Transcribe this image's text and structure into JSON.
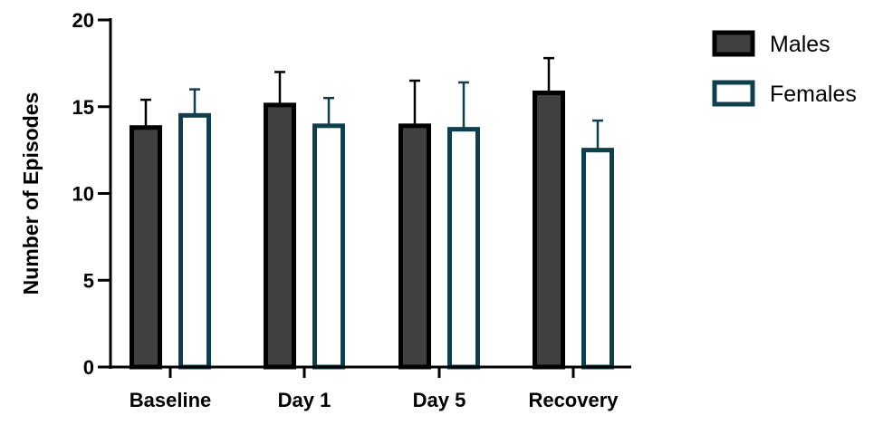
{
  "chart_data": {
    "type": "bar",
    "categories": [
      "Baseline",
      "Day 1",
      "Day 5",
      "Recovery"
    ],
    "series": [
      {
        "name": "Males",
        "values": [
          13.8,
          15.1,
          13.9,
          15.8
        ],
        "errors": [
          1.6,
          1.9,
          2.6,
          2.0
        ],
        "fill": "#404040",
        "stroke": "#000000"
      },
      {
        "name": "Females",
        "values": [
          14.5,
          13.9,
          13.7,
          12.5
        ],
        "errors": [
          1.5,
          1.6,
          2.7,
          1.7
        ],
        "fill": "#ffffff",
        "stroke": "#0f3f4d"
      }
    ],
    "ylabel": "Number of Episodes",
    "xlabel": "",
    "ylim": [
      0,
      20
    ],
    "yticks": [
      0,
      5,
      10,
      15,
      20
    ],
    "grid": false,
    "legend_position": "top-right"
  }
}
